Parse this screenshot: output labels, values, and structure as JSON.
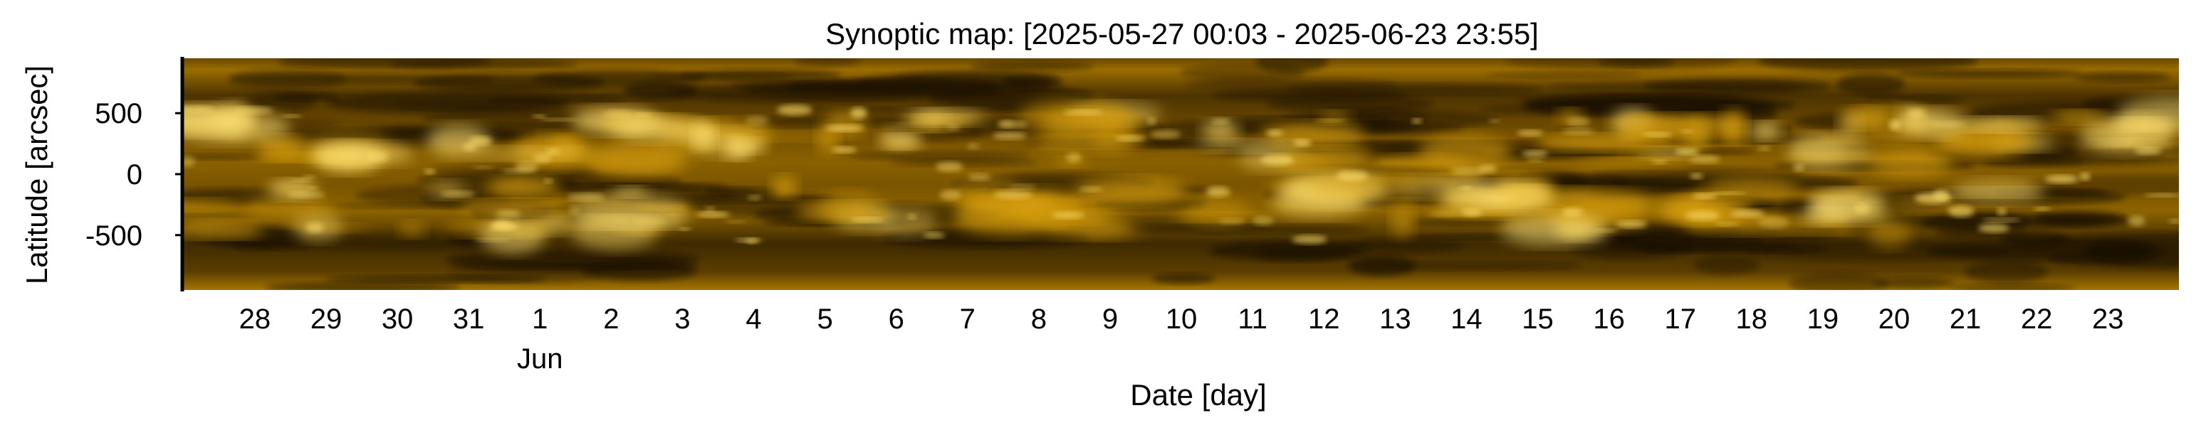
{
  "chart_data": {
    "type": "heatmap",
    "title": "Synoptic map: [2025-05-27 00:03 - 2025-06-23 23:55]",
    "xlabel": "Date [day]",
    "ylabel": "Latitude [arcsec]",
    "x_range": [
      "2025-05-27 00:03",
      "2025-06-23 23:55"
    ],
    "ylim": [
      -950,
      950
    ],
    "y_ticks": [
      500,
      0,
      -500
    ],
    "y_tick_labels": [
      "500",
      "0",
      "-500"
    ],
    "x_ticks": [
      "2025-05-28",
      "2025-05-29",
      "2025-05-30",
      "2025-05-31",
      "2025-06-01",
      "2025-06-02",
      "2025-06-03",
      "2025-06-04",
      "2025-06-05",
      "2025-06-06",
      "2025-06-07",
      "2025-06-08",
      "2025-06-09",
      "2025-06-10",
      "2025-06-11",
      "2025-06-12",
      "2025-06-13",
      "2025-06-14",
      "2025-06-15",
      "2025-06-16",
      "2025-06-17",
      "2025-06-18",
      "2025-06-19",
      "2025-06-20",
      "2025-06-21",
      "2025-06-22",
      "2025-06-23"
    ],
    "x_tick_labels": [
      "28",
      "29",
      "30",
      "31",
      "1",
      "2",
      "3",
      "4",
      "5",
      "6",
      "7",
      "8",
      "9",
      "10",
      "11",
      "12",
      "13",
      "14",
      "15",
      "16",
      "17",
      "18",
      "19",
      "20",
      "21",
      "22",
      "23"
    ],
    "x_secondary_label": "Jun",
    "x_secondary_label_date": "2025-06-01",
    "colormap": [
      "#150d00",
      "#4a3200",
      "#9a6c00",
      "#d79f10",
      "#ffe070"
    ],
    "grid": false
  }
}
